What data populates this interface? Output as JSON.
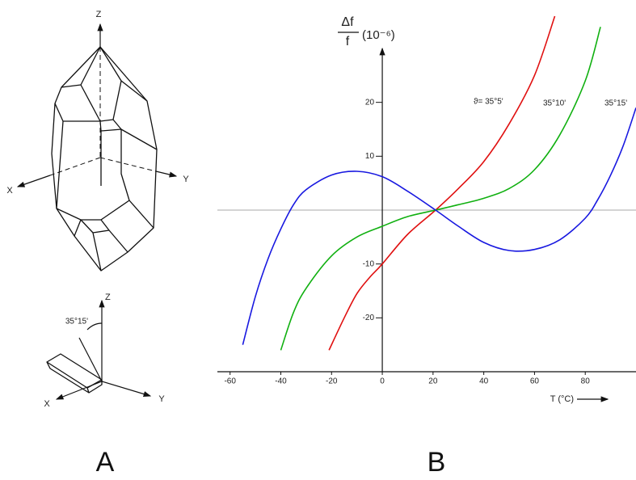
{
  "chart_data": {
    "type": "line",
    "y_label_numerator": "Δf",
    "y_label_denominator": "f",
    "y_label_unit": "(10⁻⁶)",
    "x_label": "T (°C)",
    "xlim": [
      -65,
      100
    ],
    "ylim": [
      -30,
      30
    ],
    "xticks": [
      -60,
      -40,
      -20,
      0,
      20,
      40,
      60,
      80
    ],
    "yticks": [
      -20,
      -10,
      10,
      20
    ],
    "reference_line": 0,
    "series": [
      {
        "name": "ϑ= 35°5'",
        "color": "#e01010",
        "x": [
          -21,
          -15,
          -10,
          -5,
          0,
          10,
          21,
          30,
          40,
          50,
          60,
          68
        ],
        "values": [
          -26,
          -20,
          -15.5,
          -12.5,
          -10,
          -4.5,
          0,
          4,
          9,
          16,
          25,
          36
        ]
      },
      {
        "name": "35°10'",
        "color": "#10b010",
        "x": [
          -40,
          -35,
          -30,
          -20,
          -10,
          0,
          10,
          21,
          30,
          40,
          50,
          60,
          70,
          80,
          86
        ],
        "values": [
          -26,
          -19,
          -14.5,
          -8.5,
          -5,
          -3,
          -1.2,
          0,
          1,
          2.2,
          4,
          7.5,
          14,
          24,
          34
        ]
      },
      {
        "name": "35°15'",
        "color": "#1818e0",
        "x": [
          -55,
          -50,
          -45,
          -40,
          -35,
          -30,
          -20,
          -10,
          0,
          10,
          21,
          30,
          40,
          50,
          60,
          70,
          80,
          85,
          90,
          95,
          100
        ],
        "values": [
          -25,
          -16,
          -9,
          -3.5,
          1,
          3.8,
          6.5,
          7.2,
          6.2,
          3.5,
          0,
          -3,
          -6,
          -7.5,
          -7.3,
          -5.5,
          -1.5,
          2,
          6.5,
          12,
          19
        ]
      }
    ]
  },
  "diagram": {
    "crystal_axes": {
      "z": "Z",
      "x": "X",
      "y": "Y"
    },
    "cut_axes": {
      "z": "Z",
      "x": "X",
      "y": "Y",
      "angle": "35°15'"
    }
  },
  "panel_labels": {
    "a": "A",
    "b": "B"
  }
}
